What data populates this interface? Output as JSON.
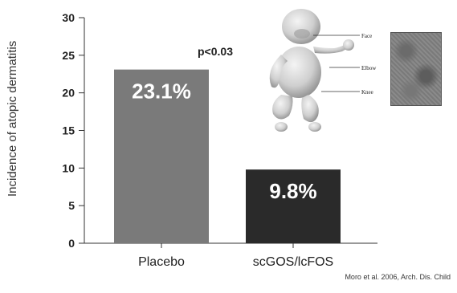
{
  "chart_data": {
    "type": "bar",
    "categories": [
      "Placebo",
      "scGOS/lcFOS"
    ],
    "values": [
      23.1,
      9.8
    ],
    "data_labels": [
      "23.1%",
      "9.8%"
    ],
    "bar_colors": [
      "#7a7a7a",
      "#2a2a2a"
    ],
    "ylabel": "Incidence of atopic dermatitis",
    "ylim": [
      0,
      30
    ],
    "yticks": [
      0,
      5,
      10,
      15,
      20,
      25,
      30
    ],
    "grid": false
  },
  "annotation": {
    "pvalue": "p<0.03"
  },
  "illustration": {
    "labels": [
      "Face",
      "Elbow",
      "Knee"
    ]
  },
  "source": "Moro et al. 2006, Arch. Dis. Child"
}
